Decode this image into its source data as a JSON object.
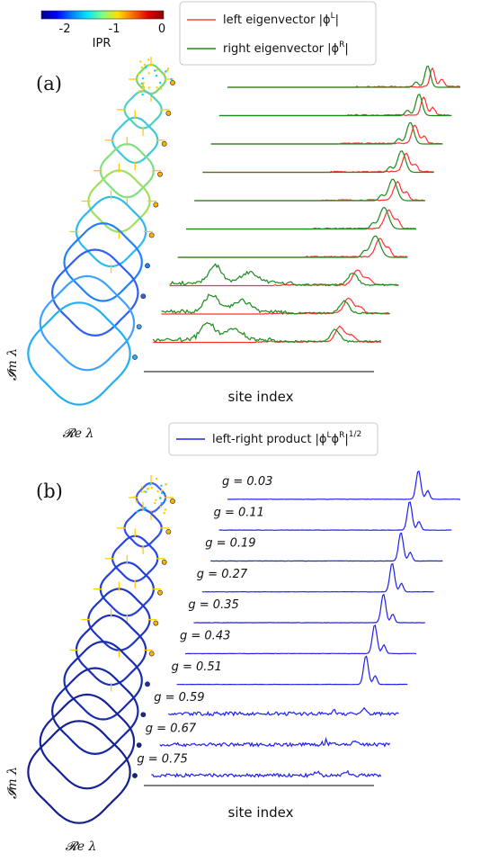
{
  "colorbar": {
    "label": "IPR",
    "ticks": [
      "-2",
      "-1",
      "0"
    ],
    "tick_values": [
      -2,
      -1,
      0
    ],
    "range": [
      -2.5,
      0
    ],
    "colormap": [
      "#00008b",
      "#0000ff",
      "#0080ff",
      "#00e5ff",
      "#7fff7f",
      "#ffe000",
      "#ff6a00",
      "#e00000",
      "#8b0000"
    ]
  },
  "panel_a": {
    "label": "(a)",
    "legend": [
      {
        "text": "left eigenvector |ϕ",
        "sup": "L",
        "tail": "|",
        "color": "#ff4444"
      },
      {
        "text": "right eigenvector |ϕ",
        "sup": "R",
        "tail": "|",
        "color": "#228b22"
      }
    ],
    "x_axis_label": "site index",
    "im_label": "𝓘m λ",
    "re_label": "𝓡e λ"
  },
  "panel_b": {
    "label": "(b)",
    "legend": {
      "text": "left-right product |ϕ",
      "sup_l": "L",
      "sup_r": "R",
      "tail": "|",
      "power": "1/2",
      "color": "#2020ee"
    },
    "x_axis_label": "site index",
    "im_label": "𝓘m λ",
    "re_label": "𝓡e λ"
  },
  "chart_data": [
    {
      "type": "line",
      "title": "",
      "xlabel": "site index",
      "ylabel": "",
      "series": [
        {
          "name": "left eigenvector |ϕ_m^L|",
          "color": "#ff4444"
        },
        {
          "name": "right eigenvector |ϕ_m^R|",
          "color": "#228b22"
        }
      ],
      "g": [
        0.03,
        0.11,
        0.19,
        0.27,
        0.35,
        0.43,
        0.51,
        0.59,
        0.67,
        0.75
      ],
      "peak_position": [
        0.86,
        0.86,
        0.86,
        0.86,
        0.86,
        0.86,
        0.86,
        0.82,
        0.82,
        0.82
      ],
      "right_spread_left_lobe": [
        false,
        false,
        false,
        false,
        false,
        false,
        false,
        true,
        true,
        true
      ]
    },
    {
      "type": "line",
      "title": "",
      "xlabel": "site index",
      "ylabel": "",
      "series": [
        {
          "name": "left-right product |ϕ_m^L ϕ_m^R|^{1/2}",
          "color": "#2020ee"
        }
      ],
      "g": [
        0.03,
        0.11,
        0.19,
        0.27,
        0.35,
        0.43,
        0.51,
        0.59,
        0.67,
        0.75
      ],
      "curve_labels": [
        "g = 0.03",
        "g = 0.11",
        "g = 0.19",
        "g = 0.27",
        "g = 0.35",
        "g = 0.43",
        "g = 0.51",
        "g = 0.59",
        "g = 0.67",
        "g = 0.75"
      ],
      "localized": [
        true,
        true,
        true,
        true,
        true,
        true,
        true,
        false,
        false,
        false
      ]
    }
  ]
}
